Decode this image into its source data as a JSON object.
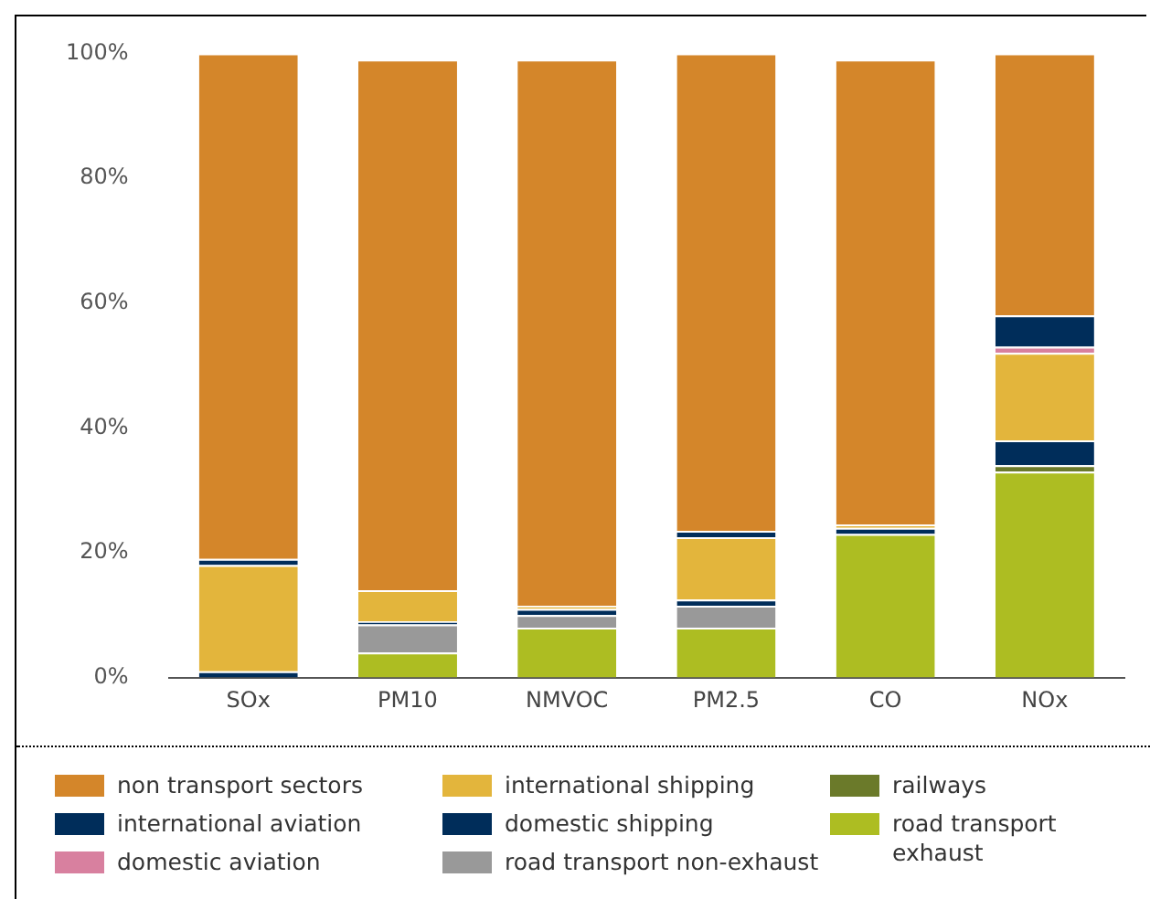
{
  "chart_data": {
    "type": "bar",
    "stacked": true,
    "categories": [
      "SOx",
      "PM10",
      "NMVOC",
      "PM2.5",
      "CO",
      "NOx"
    ],
    "series": [
      {
        "name": "road transport exhaust",
        "color": "#adbd22",
        "values": [
          0,
          4,
          8,
          8,
          23,
          33
        ]
      },
      {
        "name": "railways",
        "color": "#6b7a2a",
        "values": [
          0,
          0,
          0,
          0,
          0,
          1
        ]
      },
      {
        "name": "road transport non-exhaust",
        "color": "#999999",
        "values": [
          0,
          4.5,
          2,
          3.5,
          0,
          0
        ]
      },
      {
        "name": "domestic shipping",
        "color": "#002d5a",
        "values": [
          1,
          0.5,
          1,
          1,
          1,
          4
        ]
      },
      {
        "name": "international shipping",
        "color": "#e3b53c",
        "values": [
          17,
          5,
          0.5,
          10,
          0.5,
          14
        ]
      },
      {
        "name": "domestic aviation",
        "color": "#d8809f",
        "values": [
          0,
          0,
          0,
          0,
          0,
          1
        ]
      },
      {
        "name": "international aviation",
        "color": "#002d5a",
        "values": [
          1,
          0,
          0,
          1,
          0,
          5
        ]
      },
      {
        "name": "non transport sectors",
        "color": "#d4862a",
        "values": [
          81,
          85,
          87.5,
          76.5,
          74.5,
          42
        ]
      }
    ],
    "ylim": [
      0,
      100
    ],
    "yticks": [
      {
        "value": 0,
        "label": "0%"
      },
      {
        "value": 20,
        "label": "20%"
      },
      {
        "value": 40,
        "label": "40%"
      },
      {
        "value": 60,
        "label": "60%"
      },
      {
        "value": 80,
        "label": "80%"
      },
      {
        "value": 100,
        "label": "100%"
      }
    ],
    "grid": false,
    "legend": "bottom"
  }
}
